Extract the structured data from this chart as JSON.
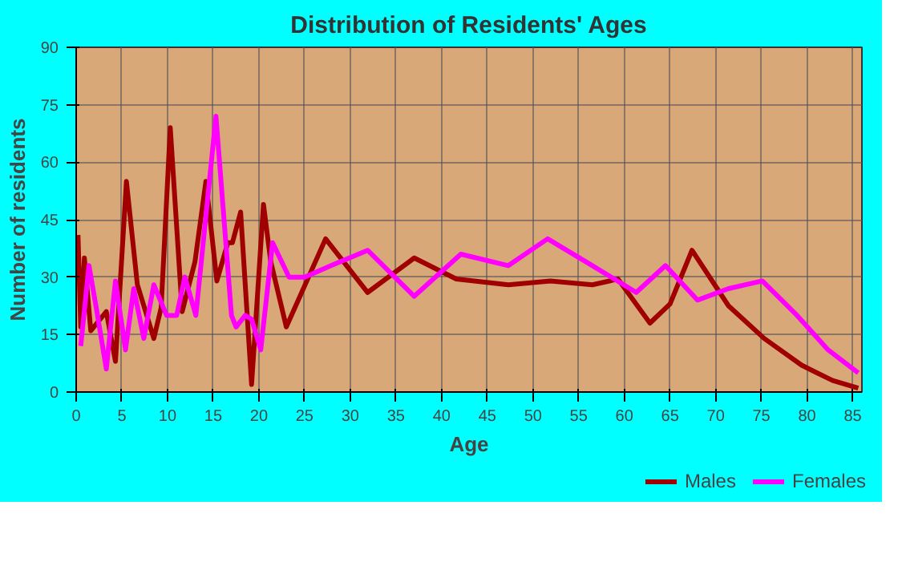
{
  "chart_data": {
    "type": "line",
    "title": "Distribution of Residents' Ages",
    "xlabel": "Age",
    "ylabel": "Number of residents",
    "xlim": [
      0,
      86
    ],
    "xticks": [
      0,
      5,
      10,
      15,
      20,
      25,
      30,
      35,
      40,
      45,
      50,
      55,
      60,
      65,
      70,
      75,
      80,
      85
    ],
    "ylim": [
      0,
      90
    ],
    "yticks": [
      0,
      15,
      30,
      45,
      60,
      75,
      90
    ],
    "grid": true,
    "legend": "bottom right",
    "marker": "none",
    "line_style": "solid",
    "series": [
      {
        "name": "Males",
        "color": "#a00000",
        "x": [
          0.2,
          0.5,
          0.9,
          1.6,
          3.3,
          4.3,
          5.5,
          6.7,
          8.5,
          9.3,
          10.3,
          11.6,
          13,
          14.2,
          15.4,
          16.6,
          17.1,
          18,
          19.2,
          20.5,
          21.3,
          23,
          27.3,
          31.9,
          37,
          41.6,
          47.3,
          51.9,
          56.5,
          59.3,
          62.8,
          65,
          67.4,
          71.4,
          75.3,
          79.4,
          82.8,
          85.6
        ],
        "values": [
          41,
          17,
          35,
          16,
          21,
          8,
          55,
          28,
          14,
          22,
          69,
          21,
          34,
          55,
          29,
          39,
          39,
          47,
          2,
          49,
          34,
          17,
          40,
          26,
          35,
          29.5,
          28,
          29,
          28,
          29.5,
          18,
          23,
          37,
          22.5,
          14,
          7,
          3,
          1
        ]
      },
      {
        "name": "Females",
        "color": "#ff00ff",
        "x": [
          0.5,
          1.4,
          2.2,
          3.3,
          4.3,
          5.4,
          6.3,
          7.4,
          8.5,
          9.9,
          11,
          11.9,
          13.1,
          15.3,
          17,
          17.5,
          18.5,
          19.2,
          20.2,
          21.5,
          23.3,
          25,
          27.9,
          31.9,
          37,
          42.1,
          47.3,
          51.6,
          56.5,
          61.3,
          64.5,
          68,
          71.4,
          75.1,
          78.9,
          82.3,
          85.6
        ],
        "values": [
          12,
          33,
          22,
          6,
          29,
          11,
          27,
          14,
          28,
          20,
          20,
          30,
          20,
          72,
          20,
          17,
          20,
          19,
          11,
          39,
          30,
          30,
          33,
          37,
          25,
          36,
          33,
          40,
          33,
          26,
          33,
          24,
          27,
          29,
          20,
          11,
          5
        ]
      }
    ]
  }
}
